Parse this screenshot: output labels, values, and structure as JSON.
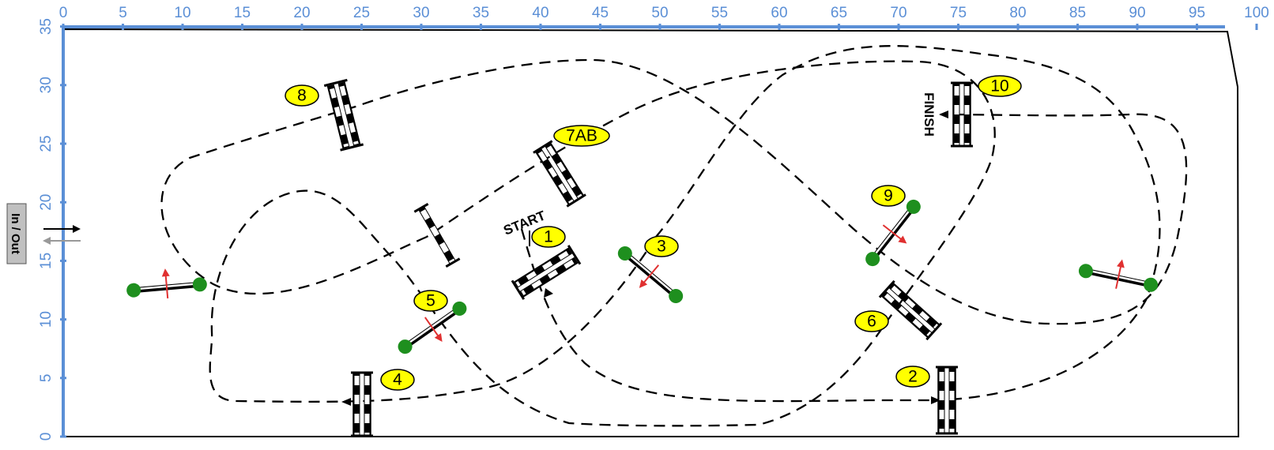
{
  "colors": {
    "axis": "#5b8fd6",
    "number_badge": "#ffff00",
    "tree": "#1e8f1e",
    "direction_arrow": "#e03030",
    "entry_arrow_in": "#000000",
    "entry_arrow_out": "#999999",
    "gate_label_box": "#c0c0c0"
  },
  "axes": {
    "x_ticks": [
      "0",
      "5",
      "10",
      "15",
      "20",
      "25",
      "30",
      "35",
      "40",
      "45",
      "50",
      "55",
      "60",
      "65",
      "70",
      "75",
      "80",
      "85",
      "90",
      "95",
      "100"
    ],
    "y_ticks": [
      "0",
      "5",
      "10",
      "15",
      "20",
      "25",
      "30",
      "35"
    ]
  },
  "labels": {
    "start": "START",
    "finish": "FINISH",
    "gate": "In / Out"
  },
  "obstacles": [
    {
      "number": "1",
      "type": "oxer"
    },
    {
      "number": "2",
      "type": "oxer"
    },
    {
      "number": "3",
      "type": "vertical with wings"
    },
    {
      "number": "4",
      "type": "oxer"
    },
    {
      "number": "5",
      "type": "vertical with wings"
    },
    {
      "number": "6",
      "type": "oxer"
    },
    {
      "number": "7AB",
      "type": "combination"
    },
    {
      "number": "8",
      "type": "oxer"
    },
    {
      "number": "9",
      "type": "vertical with wings"
    },
    {
      "number": "10",
      "type": "oxer"
    }
  ]
}
